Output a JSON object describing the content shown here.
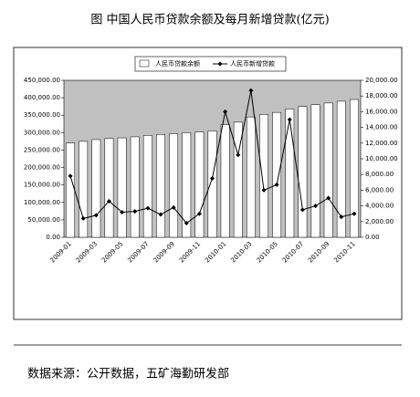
{
  "chart_data": {
    "type": "bar-line",
    "title": "图  中国人民币贷款余额及每月新增贷款(亿元)",
    "source": "数据来源：公开数据，五矿海勤研发部",
    "categories": [
      "2009-01",
      null,
      "2009-03",
      null,
      "2009-05",
      null,
      "2009-07",
      null,
      "2009-09",
      null,
      "2009-11",
      null,
      "2010-01",
      null,
      "2010-03",
      null,
      "2010-05",
      null,
      "2010-07",
      null,
      "2010-09",
      null,
      "2010-11"
    ],
    "series": [
      {
        "name": "人民币贷款余额",
        "color": "#ffffff",
        "values": [
          270000,
          275000,
          280000,
          283000,
          285000,
          288000,
          292000,
          295000,
          297000,
          300000,
          302000,
          305000,
          323000,
          330000,
          345000,
          352000,
          358000,
          368000,
          375000,
          380000,
          385000,
          390000,
          395000
        ]
      },
      {
        "name": "人民币新增贷款",
        "color": "#000000",
        "axis": "y2",
        "values": [
          7800,
          2400,
          2800,
          4600,
          3200,
          3300,
          3700,
          2900,
          3800,
          1800,
          3000,
          7500,
          16000,
          10500,
          18700,
          6000,
          6700,
          15000,
          3500,
          4000,
          5000,
          2600,
          3000
        ]
      }
    ],
    "ylim": [
      0,
      450000
    ],
    "yticks": [
      {
        "value": 0,
        "label": "0.00"
      },
      {
        "value": 50000,
        "label": "50,000.00"
      },
      {
        "value": 100000,
        "label": "100,000.00"
      },
      {
        "value": 150000,
        "label": "150,000.00"
      },
      {
        "value": 200000,
        "label": "200,000.00"
      },
      {
        "value": 250000,
        "label": "250,000.00"
      },
      {
        "value": 300000,
        "label": "300,000.00"
      },
      {
        "value": 350000,
        "label": "350,000.00"
      },
      {
        "value": 400000,
        "label": "400,000.00"
      },
      {
        "value": 450000,
        "label": "450,000.00"
      }
    ],
    "y2lim": [
      0,
      20000
    ],
    "y2ticks": [
      {
        "value": 0,
        "label": "0.00"
      },
      {
        "value": 2000,
        "label": "2,000.00"
      },
      {
        "value": 4000,
        "label": "4,000.00"
      },
      {
        "value": 6000,
        "label": "6,000.00"
      },
      {
        "value": 8000,
        "label": "8,000.00"
      },
      {
        "value": 10000,
        "label": "10,000.00"
      },
      {
        "value": 12000,
        "label": "12,000.00"
      },
      {
        "value": 14000,
        "label": "14,000.00"
      },
      {
        "value": 16000,
        "label": "16,000.00"
      },
      {
        "value": 18000,
        "label": "18,000.00"
      },
      {
        "value": 20000,
        "label": "20,000.00"
      }
    ],
    "plot_background": "#c0c0c0"
  }
}
